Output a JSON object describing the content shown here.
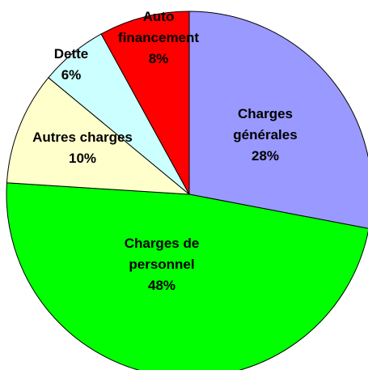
{
  "chart_data": {
    "type": "pie",
    "categories": [
      "Charges générales",
      "Charges de personnel",
      "Autres charges",
      "Dette",
      "Auto financement"
    ],
    "values": [
      28,
      48,
      10,
      6,
      8
    ],
    "value_labels": [
      "28%",
      "48%",
      "10%",
      "6%",
      "8%"
    ],
    "colors": [
      "#9999ff",
      "#00ff00",
      "#ffffcc",
      "#ccffff",
      "#ff0000"
    ]
  }
}
